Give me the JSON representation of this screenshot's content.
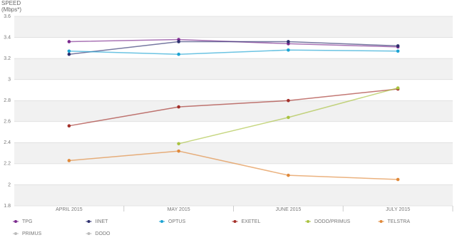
{
  "chart_data": {
    "type": "line",
    "y_label": "SPEED",
    "y_unit": "(Mbps*)",
    "categories": [
      "APRIL 2015",
      "MAY 2015",
      "JUNE 2015",
      "JULY 2015"
    ],
    "ylim": [
      1.8,
      3.6
    ],
    "yticks": [
      1.8,
      2,
      2.2,
      2.4,
      2.6,
      2.8,
      3,
      3.2,
      3.4,
      3.6
    ],
    "grid": true,
    "series": [
      {
        "name": "TPG",
        "color": "#7b2a8e",
        "values": [
          3.36,
          3.38,
          3.34,
          3.31
        ]
      },
      {
        "name": "IINET",
        "color": "#2d2f6e",
        "values": [
          3.24,
          3.36,
          3.36,
          3.32
        ]
      },
      {
        "name": "OPTUS",
        "color": "#1ca3d3",
        "values": [
          3.27,
          3.24,
          3.28,
          3.27
        ]
      },
      {
        "name": "EXETEL",
        "color": "#a3302a",
        "values": [
          2.56,
          2.74,
          2.8,
          2.91
        ]
      },
      {
        "name": "DODO/PRIMUS",
        "color": "#a9c23f",
        "values": [
          null,
          2.39,
          2.64,
          2.92
        ]
      },
      {
        "name": "TELSTRA",
        "color": "#e0893a",
        "values": [
          2.23,
          2.32,
          2.09,
          2.05
        ]
      },
      {
        "name": "PRIMUS",
        "color": "#bbbbbb",
        "hidden": true,
        "values": [
          null,
          null,
          null,
          null
        ]
      },
      {
        "name": "DODO",
        "color": "#bbbbbb",
        "hidden": true,
        "values": [
          null,
          null,
          null,
          null
        ]
      }
    ]
  }
}
